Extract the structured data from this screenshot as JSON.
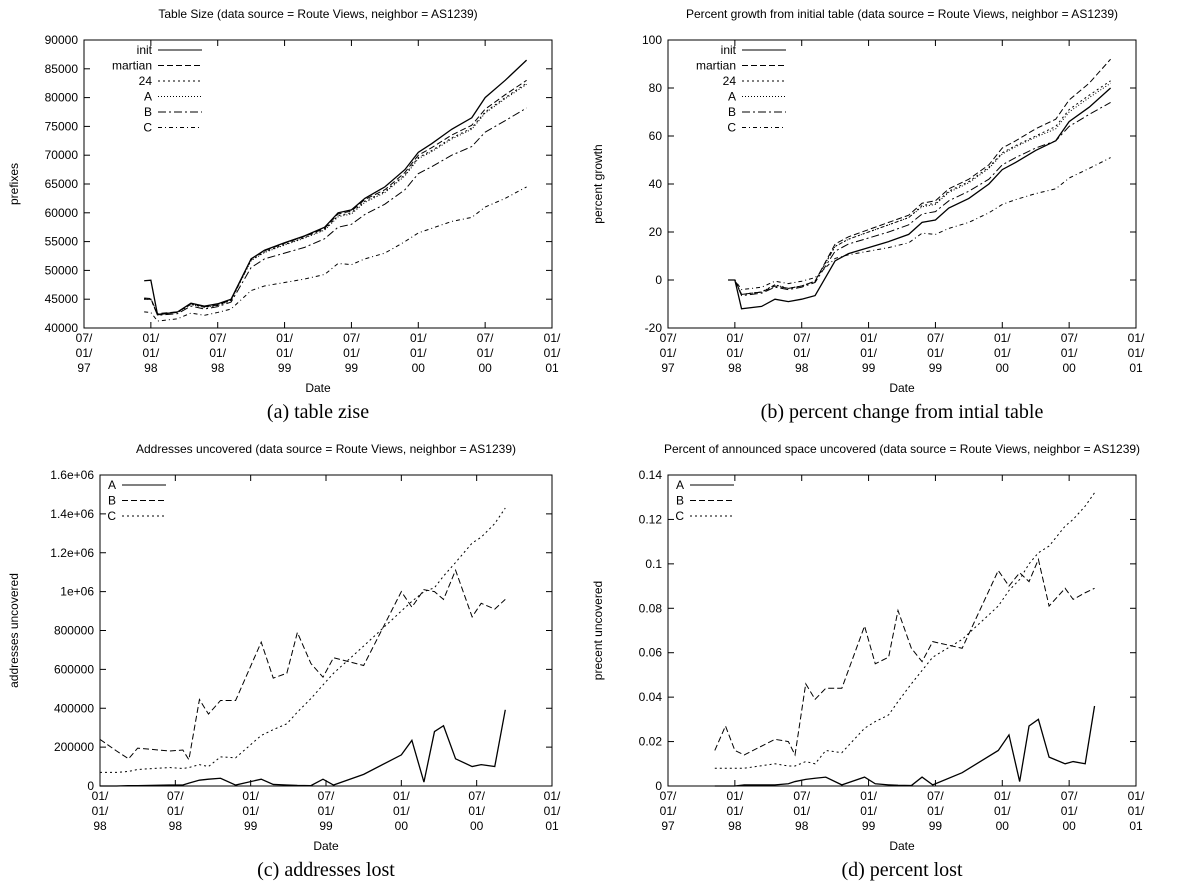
{
  "chart_data": [
    {
      "type": "line",
      "title": "Table Size (data source = Route Views, neighbor = AS1239)",
      "xlabel": "Date",
      "ylabel": "prefixes",
      "caption": "(a) table zise",
      "x": [
        1997.95,
        1998.0,
        1998.05,
        1998.2,
        1998.3,
        1998.4,
        1998.5,
        1998.6,
        1998.75,
        1998.85,
        1999.0,
        1999.15,
        1999.3,
        1999.4,
        1999.5,
        1999.6,
        1999.75,
        1999.9,
        2000.0,
        2000.1,
        2000.25,
        2000.4,
        2000.5,
        2000.65,
        2000.81
      ],
      "series": [
        {
          "name": "init",
          "color": "#000000",
          "dash": "none",
          "values": [
            48200,
            48300,
            42300,
            42800,
            44300,
            43800,
            44200,
            45000,
            52000,
            53500,
            54800,
            56000,
            57500,
            60000,
            60500,
            62500,
            64500,
            67500,
            70500,
            72000,
            74500,
            76500,
            80000,
            83000,
            86500
          ]
        },
        {
          "name": "martian",
          "color": "#000000",
          "dash": "6,3",
          "values": [
            45200,
            45100,
            42500,
            42800,
            44200,
            43700,
            44000,
            44900,
            52000,
            53400,
            54700,
            55900,
            57300,
            59800,
            60300,
            62300,
            64000,
            67000,
            70000,
            71300,
            73500,
            75200,
            78000,
            80500,
            83000
          ]
        },
        {
          "name": "24",
          "color": "#000000",
          "dash": "2,3",
          "values": [
            45100,
            45000,
            42400,
            42700,
            44100,
            43600,
            43900,
            44800,
            51800,
            53200,
            54500,
            55700,
            57100,
            59500,
            60000,
            62000,
            63700,
            66600,
            69600,
            70800,
            73000,
            74700,
            77500,
            80000,
            82500
          ]
        },
        {
          "name": "A",
          "color": "#000000",
          "dash": "1,2",
          "values": [
            45000,
            45000,
            42400,
            42700,
            44100,
            43600,
            43900,
            44800,
            51700,
            53100,
            54400,
            55600,
            57000,
            59300,
            59800,
            61800,
            63500,
            66400,
            69400,
            70600,
            72800,
            74500,
            77300,
            79800,
            82300
          ]
        },
        {
          "name": "B",
          "color": "#000000",
          "dash": "8,3,2,3",
          "values": [
            45000,
            45000,
            42200,
            42500,
            43800,
            43300,
            43700,
            44500,
            50500,
            52000,
            53000,
            54000,
            55500,
            57500,
            58000,
            59700,
            61500,
            64000,
            66800,
            68000,
            70000,
            71500,
            74000,
            76000,
            78200
          ]
        },
        {
          "name": "C",
          "color": "#000000",
          "dash": "4,3,1,3",
          "values": [
            42800,
            42700,
            41200,
            41600,
            42600,
            42200,
            42700,
            43300,
            46500,
            47300,
            47900,
            48500,
            49300,
            51200,
            51000,
            52000,
            53000,
            55000,
            56500,
            57300,
            58500,
            59200,
            61000,
            62500,
            64500
          ]
        }
      ],
      "xlim": [
        1997.5,
        2001.0
      ],
      "xticks": [
        {
          "value": 1997.5,
          "label": "07/01/97"
        },
        {
          "value": 1998.0,
          "label": "01/01/98"
        },
        {
          "value": 1998.5,
          "label": "07/01/98"
        },
        {
          "value": 1999.0,
          "label": "01/01/99"
        },
        {
          "value": 1999.5,
          "label": "07/01/99"
        },
        {
          "value": 2000.0,
          "label": "01/01/00"
        },
        {
          "value": 2000.5,
          "label": "07/01/00"
        },
        {
          "value": 2001.0,
          "label": "01/01/01"
        }
      ],
      "ylim": [
        40000,
        90000
      ],
      "yticks": [
        40000,
        45000,
        50000,
        55000,
        60000,
        65000,
        70000,
        75000,
        80000,
        85000,
        90000
      ]
    },
    {
      "type": "line",
      "title": "Percent growth from initial table (data source = Route Views, neighbor = AS1239)",
      "xlabel": "Date",
      "ylabel": "percent growth",
      "caption": "(b) percent change from intial table",
      "x": [
        1997.95,
        1998.0,
        1998.05,
        1998.2,
        1998.3,
        1998.4,
        1998.5,
        1998.6,
        1998.75,
        1998.85,
        1999.0,
        1999.15,
        1999.3,
        1999.4,
        1999.5,
        1999.6,
        1999.75,
        1999.9,
        2000.0,
        2000.1,
        2000.25,
        2000.4,
        2000.5,
        2000.65,
        2000.81
      ],
      "series": [
        {
          "name": "init",
          "color": "#000000",
          "dash": "none",
          "values": [
            0,
            0,
            -12,
            -11,
            -8,
            -9,
            -8,
            -6.5,
            8,
            11,
            13.5,
            16,
            19,
            24,
            25,
            30,
            34,
            40,
            46,
            49,
            54,
            58,
            66,
            72,
            80
          ]
        },
        {
          "name": "martian",
          "color": "#000000",
          "dash": "6,3",
          "values": [
            0,
            0,
            -6,
            -5,
            -2.5,
            -3.5,
            -2.5,
            -0.5,
            15,
            18,
            21,
            24,
            27,
            32,
            33,
            38,
            42,
            48,
            55,
            58,
            63,
            67,
            75,
            82,
            92
          ]
        },
        {
          "name": "24",
          "color": "#000000",
          "dash": "2,3",
          "values": [
            0,
            0,
            -6,
            -5,
            -2,
            -3.5,
            -2.5,
            -0.5,
            14,
            17,
            20,
            23,
            26,
            31,
            32,
            37,
            41,
            47,
            53,
            56,
            60,
            64,
            71,
            77,
            83
          ]
        },
        {
          "name": "A",
          "color": "#000000",
          "dash": "1,2",
          "values": [
            0,
            0,
            -6,
            -5,
            -2,
            -3.5,
            -2.5,
            -0.5,
            14,
            17,
            20,
            23,
            26,
            30.5,
            31.5,
            36.5,
            40.5,
            46.5,
            52.5,
            55.5,
            59.5,
            63,
            70,
            76,
            82
          ]
        },
        {
          "name": "B",
          "color": "#000000",
          "dash": "8,3,2,3",
          "values": [
            0,
            0,
            -6.5,
            -5.5,
            -3,
            -4,
            -3,
            -1,
            12,
            15,
            17.5,
            20,
            23,
            27.5,
            28.5,
            33,
            37,
            42,
            48,
            51,
            55,
            58,
            64,
            69,
            74
          ]
        },
        {
          "name": "C",
          "color": "#000000",
          "dash": "4,3,1,3",
          "values": [
            0,
            0,
            -4,
            -3,
            -0.5,
            -1.5,
            -0.5,
            1,
            9,
            10.5,
            12,
            13.5,
            15.5,
            19.5,
            19,
            21.5,
            24,
            28,
            31.5,
            33.5,
            36,
            38,
            42.5,
            46.5,
            51
          ]
        }
      ],
      "xlim": [
        1997.5,
        2001.0
      ],
      "xticks": [
        {
          "value": 1997.5,
          "label": "07/01/97"
        },
        {
          "value": 1998.0,
          "label": "01/01/98"
        },
        {
          "value": 1998.5,
          "label": "07/01/98"
        },
        {
          "value": 1999.0,
          "label": "01/01/99"
        },
        {
          "value": 1999.5,
          "label": "07/01/99"
        },
        {
          "value": 2000.0,
          "label": "01/01/00"
        },
        {
          "value": 2000.5,
          "label": "07/01/00"
        },
        {
          "value": 2001.0,
          "label": "01/01/01"
        }
      ],
      "ylim": [
        -20,
        100
      ],
      "yticks": [
        -20,
        0,
        20,
        40,
        60,
        80,
        100
      ]
    },
    {
      "type": "line",
      "title": "Addresses uncovered (data source = Route Views, neighbor = AS1239)",
      "xlabel": "Date",
      "ylabel": "addresses uncovered",
      "caption": "(c) addresses lost",
      "x": [
        1998.0,
        1998.11,
        1998.19,
        1998.25,
        1998.46,
        1998.55,
        1998.59,
        1998.66,
        1998.72,
        1998.8,
        1998.9,
        1999.07,
        1999.15,
        1999.24,
        1999.31,
        1999.4,
        1999.48,
        1999.55,
        1999.75,
        2000.0,
        2000.07,
        2000.15,
        2000.22,
        2000.28,
        2000.36,
        2000.47,
        2000.53,
        2000.62,
        2000.69
      ],
      "series": [
        {
          "name": "A",
          "color": "#000000",
          "dash": "none",
          "values": [
            0,
            0,
            2000,
            2000,
            5000,
            5000,
            15000,
            30000,
            35000,
            40000,
            5000,
            35000,
            8000,
            5000,
            3000,
            2000,
            35000,
            5000,
            60000,
            160000,
            235000,
            20000,
            280000,
            310000,
            140000,
            100000,
            110000,
            100000,
            392000
          ]
        },
        {
          "name": "B",
          "color": "#000000",
          "dash": "6,3",
          "values": [
            240000,
            180000,
            140000,
            195000,
            180000,
            185000,
            135000,
            445000,
            370000,
            440000,
            440000,
            740000,
            555000,
            580000,
            790000,
            630000,
            560000,
            660000,
            620000,
            1000000,
            920000,
            1010000,
            1000000,
            960000,
            1110000,
            870000,
            940000,
            910000,
            960000
          ]
        },
        {
          "name": "C",
          "color": "#000000",
          "dash": "2,3",
          "values": [
            70000,
            70000,
            75000,
            85000,
            95000,
            90000,
            95000,
            110000,
            100000,
            150000,
            145000,
            260000,
            290000,
            320000,
            380000,
            450000,
            520000,
            580000,
            720000,
            900000,
            950000,
            1000000,
            1020000,
            1080000,
            1150000,
            1250000,
            1280000,
            1350000,
            1430000
          ]
        }
      ],
      "xlim": [
        1998.0,
        2001.0
      ],
      "xticks": [
        {
          "value": 1998.0,
          "label": "01/01/98"
        },
        {
          "value": 1998.5,
          "label": "07/01/98"
        },
        {
          "value": 1999.0,
          "label": "01/01/99"
        },
        {
          "value": 1999.5,
          "label": "07/01/99"
        },
        {
          "value": 2000.0,
          "label": "01/01/00"
        },
        {
          "value": 2000.5,
          "label": "07/01/00"
        },
        {
          "value": 2001.0,
          "label": "01/01/01"
        }
      ],
      "ylim": [
        0,
        1600000
      ],
      "yticks": [
        0,
        200000,
        400000,
        600000,
        800000,
        {
          "value": 1000000,
          "label": "1e+06"
        },
        {
          "value": 1200000,
          "label": "1.2e+06"
        },
        {
          "value": 1400000,
          "label": "1.4e+06"
        },
        {
          "value": 1600000,
          "label": "1.6e+06"
        }
      ]
    },
    {
      "type": "line",
      "title": "Percent of announced space uncovered (data source = Route Views, neighbor = AS1239)",
      "xlabel": "Date",
      "ylabel": "precent uncovered",
      "caption": "(d) percent lost",
      "x": [
        1997.85,
        1997.93,
        1998.0,
        1998.07,
        1998.3,
        1998.4,
        1998.45,
        1998.53,
        1998.6,
        1998.68,
        1998.8,
        1998.97,
        1999.05,
        1999.15,
        1999.22,
        1999.32,
        1999.4,
        1999.48,
        1999.7,
        1999.97,
        2000.05,
        2000.13,
        2000.2,
        2000.27,
        2000.35,
        2000.47,
        2000.53,
        2000.62,
        2000.69
      ],
      "series": [
        {
          "name": "A",
          "color": "#000000",
          "dash": "none",
          "values": [
            0,
            0,
            0,
            0.0005,
            0.0005,
            0.001,
            0.002,
            0.003,
            0.0035,
            0.004,
            0.0005,
            0.004,
            0.001,
            0.0005,
            0.0003,
            0.0002,
            0.004,
            0.0005,
            0.006,
            0.016,
            0.023,
            0.002,
            0.027,
            0.03,
            0.013,
            0.01,
            0.011,
            0.01,
            0.036
          ]
        },
        {
          "name": "B",
          "color": "#000000",
          "dash": "6,3",
          "values": [
            0.016,
            0.027,
            0.016,
            0.014,
            0.021,
            0.02,
            0.014,
            0.046,
            0.039,
            0.044,
            0.044,
            0.072,
            0.055,
            0.058,
            0.079,
            0.062,
            0.056,
            0.065,
            0.062,
            0.097,
            0.09,
            0.096,
            0.092,
            0.102,
            0.081,
            0.089,
            0.084,
            0.087,
            0.089
          ]
        },
        {
          "name": "C",
          "color": "#000000",
          "dash": "2,3",
          "values": [
            0.008,
            0.008,
            0.008,
            0.008,
            0.01,
            0.009,
            0.009,
            0.011,
            0.01,
            0.016,
            0.015,
            0.026,
            0.029,
            0.032,
            0.038,
            0.046,
            0.052,
            0.058,
            0.066,
            0.081,
            0.088,
            0.093,
            0.1,
            0.105,
            0.108,
            0.117,
            0.12,
            0.126,
            0.132
          ]
        }
      ],
      "xlim": [
        1997.5,
        2001.0
      ],
      "xticks": [
        {
          "value": 1997.5,
          "label": "07/01/97"
        },
        {
          "value": 1998.0,
          "label": "01/01/98"
        },
        {
          "value": 1998.5,
          "label": "07/01/98"
        },
        {
          "value": 1999.0,
          "label": "01/01/99"
        },
        {
          "value": 1999.5,
          "label": "07/01/99"
        },
        {
          "value": 2000.0,
          "label": "01/01/00"
        },
        {
          "value": 2000.5,
          "label": "07/01/00"
        },
        {
          "value": 2001.0,
          "label": "01/01/01"
        }
      ],
      "ylim": [
        0,
        0.14
      ],
      "yticks": [
        0,
        0.02,
        0.04,
        0.06,
        0.08,
        0.1,
        0.12,
        0.14
      ]
    }
  ]
}
